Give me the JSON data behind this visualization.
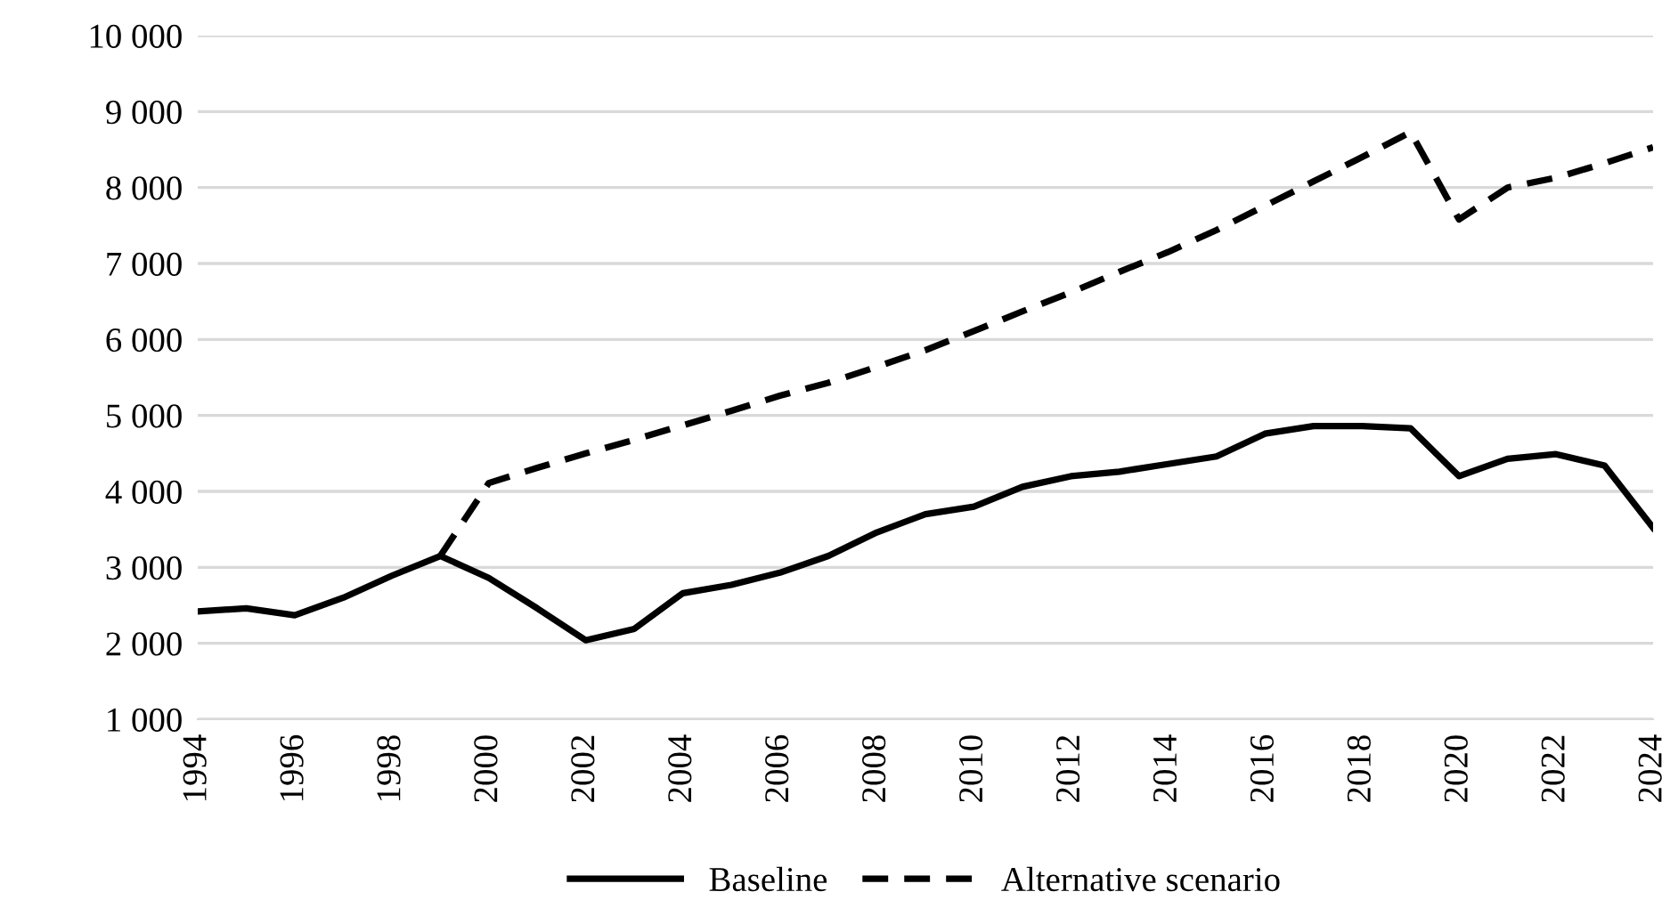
{
  "chart_data": {
    "type": "line",
    "x": [
      1994,
      1995,
      1996,
      1997,
      1998,
      1999,
      2000,
      2001,
      2002,
      2003,
      2004,
      2005,
      2006,
      2007,
      2008,
      2009,
      2010,
      2011,
      2012,
      2013,
      2014,
      2015,
      2016,
      2017,
      2018,
      2019,
      2020,
      2021,
      2022,
      2023,
      2024
    ],
    "series": [
      {
        "name": "Baseline",
        "color": "#000000",
        "line_style": "solid",
        "values": [
          2420,
          2460,
          2370,
          2600,
          2890,
          3150,
          2860,
          2460,
          2040,
          2190,
          2660,
          2770,
          2930,
          3150,
          3460,
          3700,
          3800,
          4060,
          4200,
          4260,
          4360,
          4460,
          4760,
          4860,
          4860,
          4830,
          4200,
          4430,
          4490,
          4340,
          3520
        ]
      },
      {
        "name": "Alternative scenario",
        "color": "#000000",
        "line_style": "dashed",
        "values": [
          null,
          null,
          null,
          null,
          null,
          3150,
          4110,
          4310,
          4500,
          4680,
          4870,
          5060,
          5260,
          5430,
          5640,
          5860,
          6110,
          6370,
          6620,
          6890,
          7150,
          7440,
          7760,
          8080,
          8400,
          8730,
          7580,
          8000,
          8130,
          8320,
          8530
        ]
      }
    ],
    "xlim": [
      1994,
      2024
    ],
    "xticks": [
      1994,
      1996,
      1998,
      2000,
      2002,
      2004,
      2006,
      2008,
      2010,
      2012,
      2014,
      2016,
      2018,
      2020,
      2022,
      2024
    ],
    "ylim": [
      1000,
      10000
    ],
    "yticks": [
      {
        "value": 1000,
        "label": "1 000"
      },
      {
        "value": 2000,
        "label": "2 000"
      },
      {
        "value": 3000,
        "label": "3 000"
      },
      {
        "value": 4000,
        "label": "4 000"
      },
      {
        "value": 5000,
        "label": "5 000"
      },
      {
        "value": 6000,
        "label": "6 000"
      },
      {
        "value": 7000,
        "label": "7 000"
      },
      {
        "value": 8000,
        "label": "8 000"
      },
      {
        "value": 9000,
        "label": "9 000"
      },
      {
        "value": 10000,
        "label": "10 000"
      }
    ],
    "grid": "y",
    "legend": "bottom",
    "marker": "none"
  }
}
